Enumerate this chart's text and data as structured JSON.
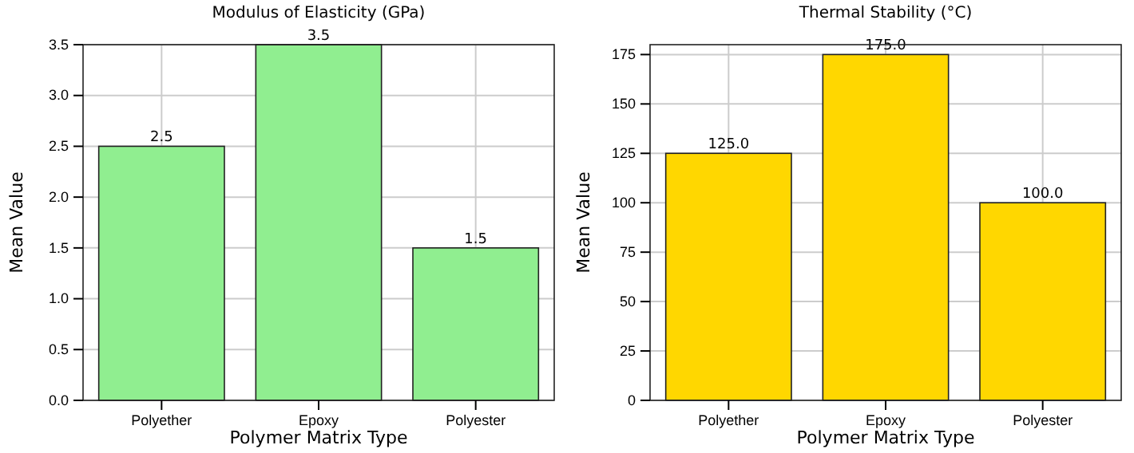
{
  "chart_data": [
    {
      "type": "bar",
      "title": "Modulus of Elasticity (GPa)",
      "xlabel": "Polymer Matrix Type",
      "ylabel": "Mean Value",
      "categories": [
        "Polyether",
        "Epoxy",
        "Polyester"
      ],
      "values": [
        2.5,
        3.5,
        1.5
      ],
      "color": "#90ee90",
      "ylim": [
        0,
        3.5
      ],
      "yticks": [
        {
          "value": 0,
          "label": "0.0"
        },
        {
          "value": 0.5,
          "label": "0.5"
        },
        {
          "value": 1,
          "label": "1.0"
        },
        {
          "value": 1.5,
          "label": "1.5"
        },
        {
          "value": 2,
          "label": "2.0"
        },
        {
          "value": 2.5,
          "label": "2.5"
        },
        {
          "value": 3,
          "label": "3.0"
        },
        {
          "value": 3.5,
          "label": "3.5"
        }
      ],
      "grid": true,
      "value_labels": [
        "2.5",
        "3.5",
        "1.5"
      ]
    },
    {
      "type": "bar",
      "title": "Thermal Stability (°C)",
      "xlabel": "Polymer Matrix Type",
      "ylabel": "Mean Value",
      "categories": [
        "Polyether",
        "Epoxy",
        "Polyester"
      ],
      "values": [
        125,
        175,
        100
      ],
      "color": "#ffd700",
      "ylim": [
        0,
        180
      ],
      "yticks": [
        0,
        25,
        50,
        75,
        100,
        125,
        150,
        175
      ],
      "grid": true,
      "value_labels": [
        "125.0",
        "175.0",
        "100.0"
      ]
    }
  ]
}
